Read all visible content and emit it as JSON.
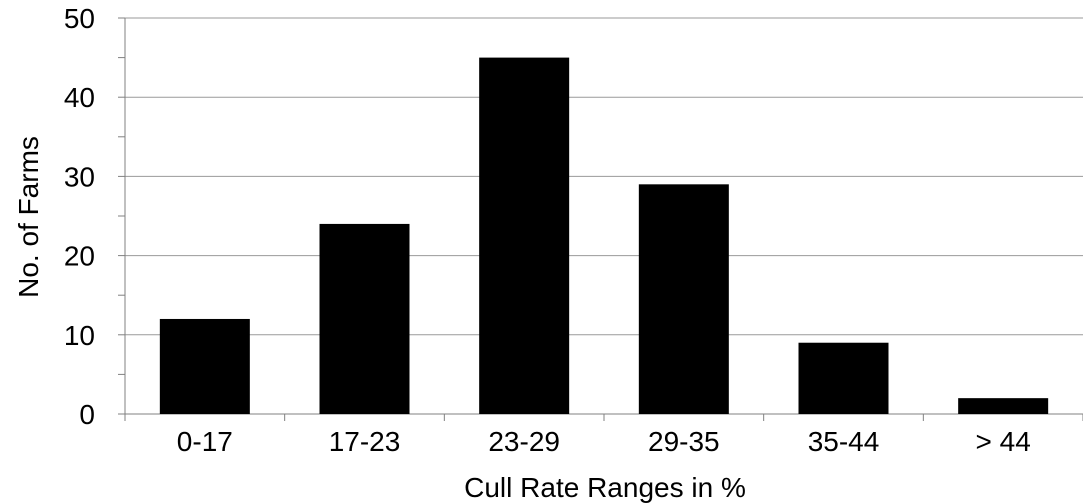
{
  "chart_data": {
    "type": "bar",
    "title": "",
    "xlabel": "Cull Rate Ranges in %",
    "ylabel": "No. of Farms",
    "categories": [
      "0-17",
      "17-23",
      "23-29",
      "29-35",
      "35-44",
      "> 44"
    ],
    "values": [
      12,
      24,
      45,
      29,
      9,
      2
    ],
    "ylim": [
      0,
      50
    ],
    "yticks": [
      0,
      10,
      20,
      30,
      40,
      50
    ],
    "grid": true,
    "legend": "none",
    "colors": {
      "bar": "#000000",
      "grid": "#9a9a9a",
      "axis": "#808080"
    }
  }
}
